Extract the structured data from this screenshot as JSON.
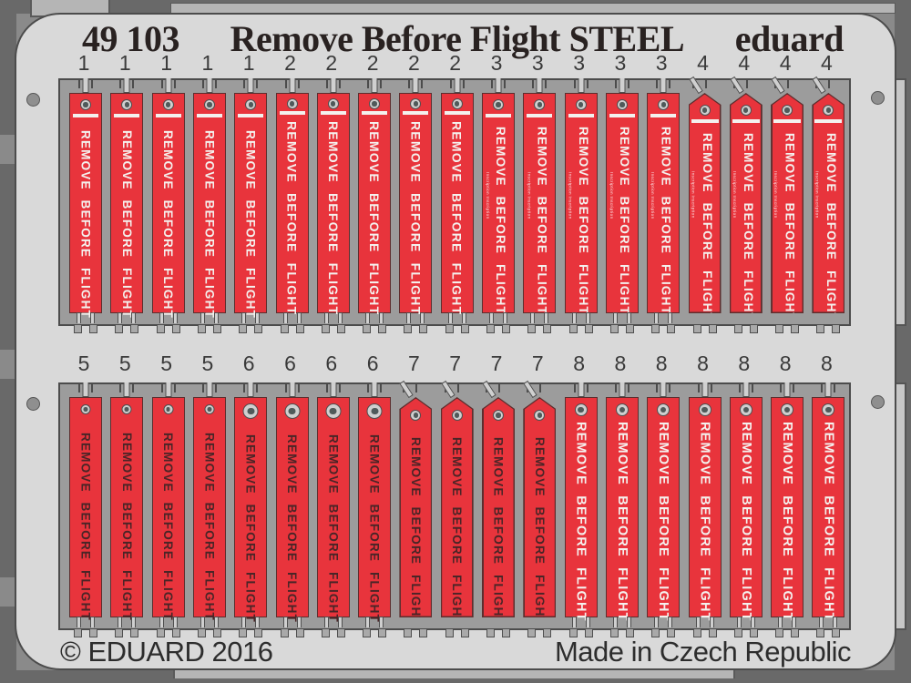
{
  "header": {
    "catalog_number": "49 103",
    "title": "Remove Before Flight STEEL",
    "brand": "eduard"
  },
  "footer": {
    "copyright": "© EDUARD 2016",
    "origin": "Made in Czech Republic"
  },
  "tags": {
    "main_label": "REMOVE BEFORE FLIGHT",
    "micro_text_illegible": "Inscription Inscription"
  },
  "colors": {
    "tag_red": "#e8343c",
    "tag_text_light": "#f4f1ee",
    "tag_text_dark": "#4a2527",
    "fret_panel": "#9c9c9c",
    "sheet_gray": "#d9d9d9",
    "outline": "#4c4c4c",
    "background": "#8a8a8a",
    "edge_dark": "#696969",
    "number_text": "#3a3a3a",
    "header_text": "#292221",
    "footer_text": "#2d2d2d"
  },
  "fret": {
    "rows": [
      {
        "groups": [
          {
            "number": "1",
            "count": 5,
            "type": "t1"
          },
          {
            "number": "2",
            "count": 5,
            "type": "t2"
          },
          {
            "number": "3",
            "count": 5,
            "type": "t3"
          },
          {
            "number": "4",
            "count": 4,
            "type": "t4"
          }
        ]
      },
      {
        "groups": [
          {
            "number": "5",
            "count": 4,
            "type": "t5"
          },
          {
            "number": "6",
            "count": 4,
            "type": "t6"
          },
          {
            "number": "7",
            "count": 4,
            "type": "t7"
          },
          {
            "number": "8",
            "count": 7,
            "type": "t8"
          }
        ]
      }
    ],
    "types": {
      "t1": {
        "pointed": false,
        "text": "light",
        "stripe": true,
        "micro": false,
        "grommet": 12,
        "gTop": 6,
        "stripeTop": 22,
        "textTop": 40,
        "fontSize": 13.5
      },
      "t2": {
        "pointed": false,
        "text": "light",
        "stripe": true,
        "micro": false,
        "grommet": 12,
        "gTop": 5,
        "stripeTop": 19,
        "textTop": 30,
        "fontSize": 14
      },
      "t3": {
        "pointed": false,
        "text": "light",
        "stripe": true,
        "micro": true,
        "grommet": 12,
        "gTop": 6,
        "stripeTop": 22,
        "textTop": 36,
        "fontSize": 13.5
      },
      "t4": {
        "pointed": true,
        "text": "light",
        "stripe": true,
        "micro": true,
        "grommet": 12,
        "gTop": 13,
        "stripeTop": 29,
        "textTop": 44,
        "fontSize": 13.5
      },
      "t5": {
        "pointed": false,
        "text": "dark",
        "stripe": false,
        "micro": false,
        "grommet": 11,
        "gTop": 7,
        "textTop": 38,
        "fontSize": 13.5
      },
      "t6": {
        "pointed": false,
        "text": "dark",
        "stripe": false,
        "micro": false,
        "grommet": 17,
        "gTop": 6,
        "textTop": 40,
        "fontSize": 13.5
      },
      "t7": {
        "pointed": true,
        "text": "dark",
        "stripe": false,
        "micro": false,
        "grommet": 12,
        "gTop": 14,
        "textTop": 44,
        "fontSize": 13.5
      },
      "t8": {
        "pointed": false,
        "text": "light",
        "stripe": false,
        "micro": false,
        "grommet": 14,
        "gTop": 6,
        "textTop": 26,
        "fontSize": 14.5
      }
    }
  }
}
